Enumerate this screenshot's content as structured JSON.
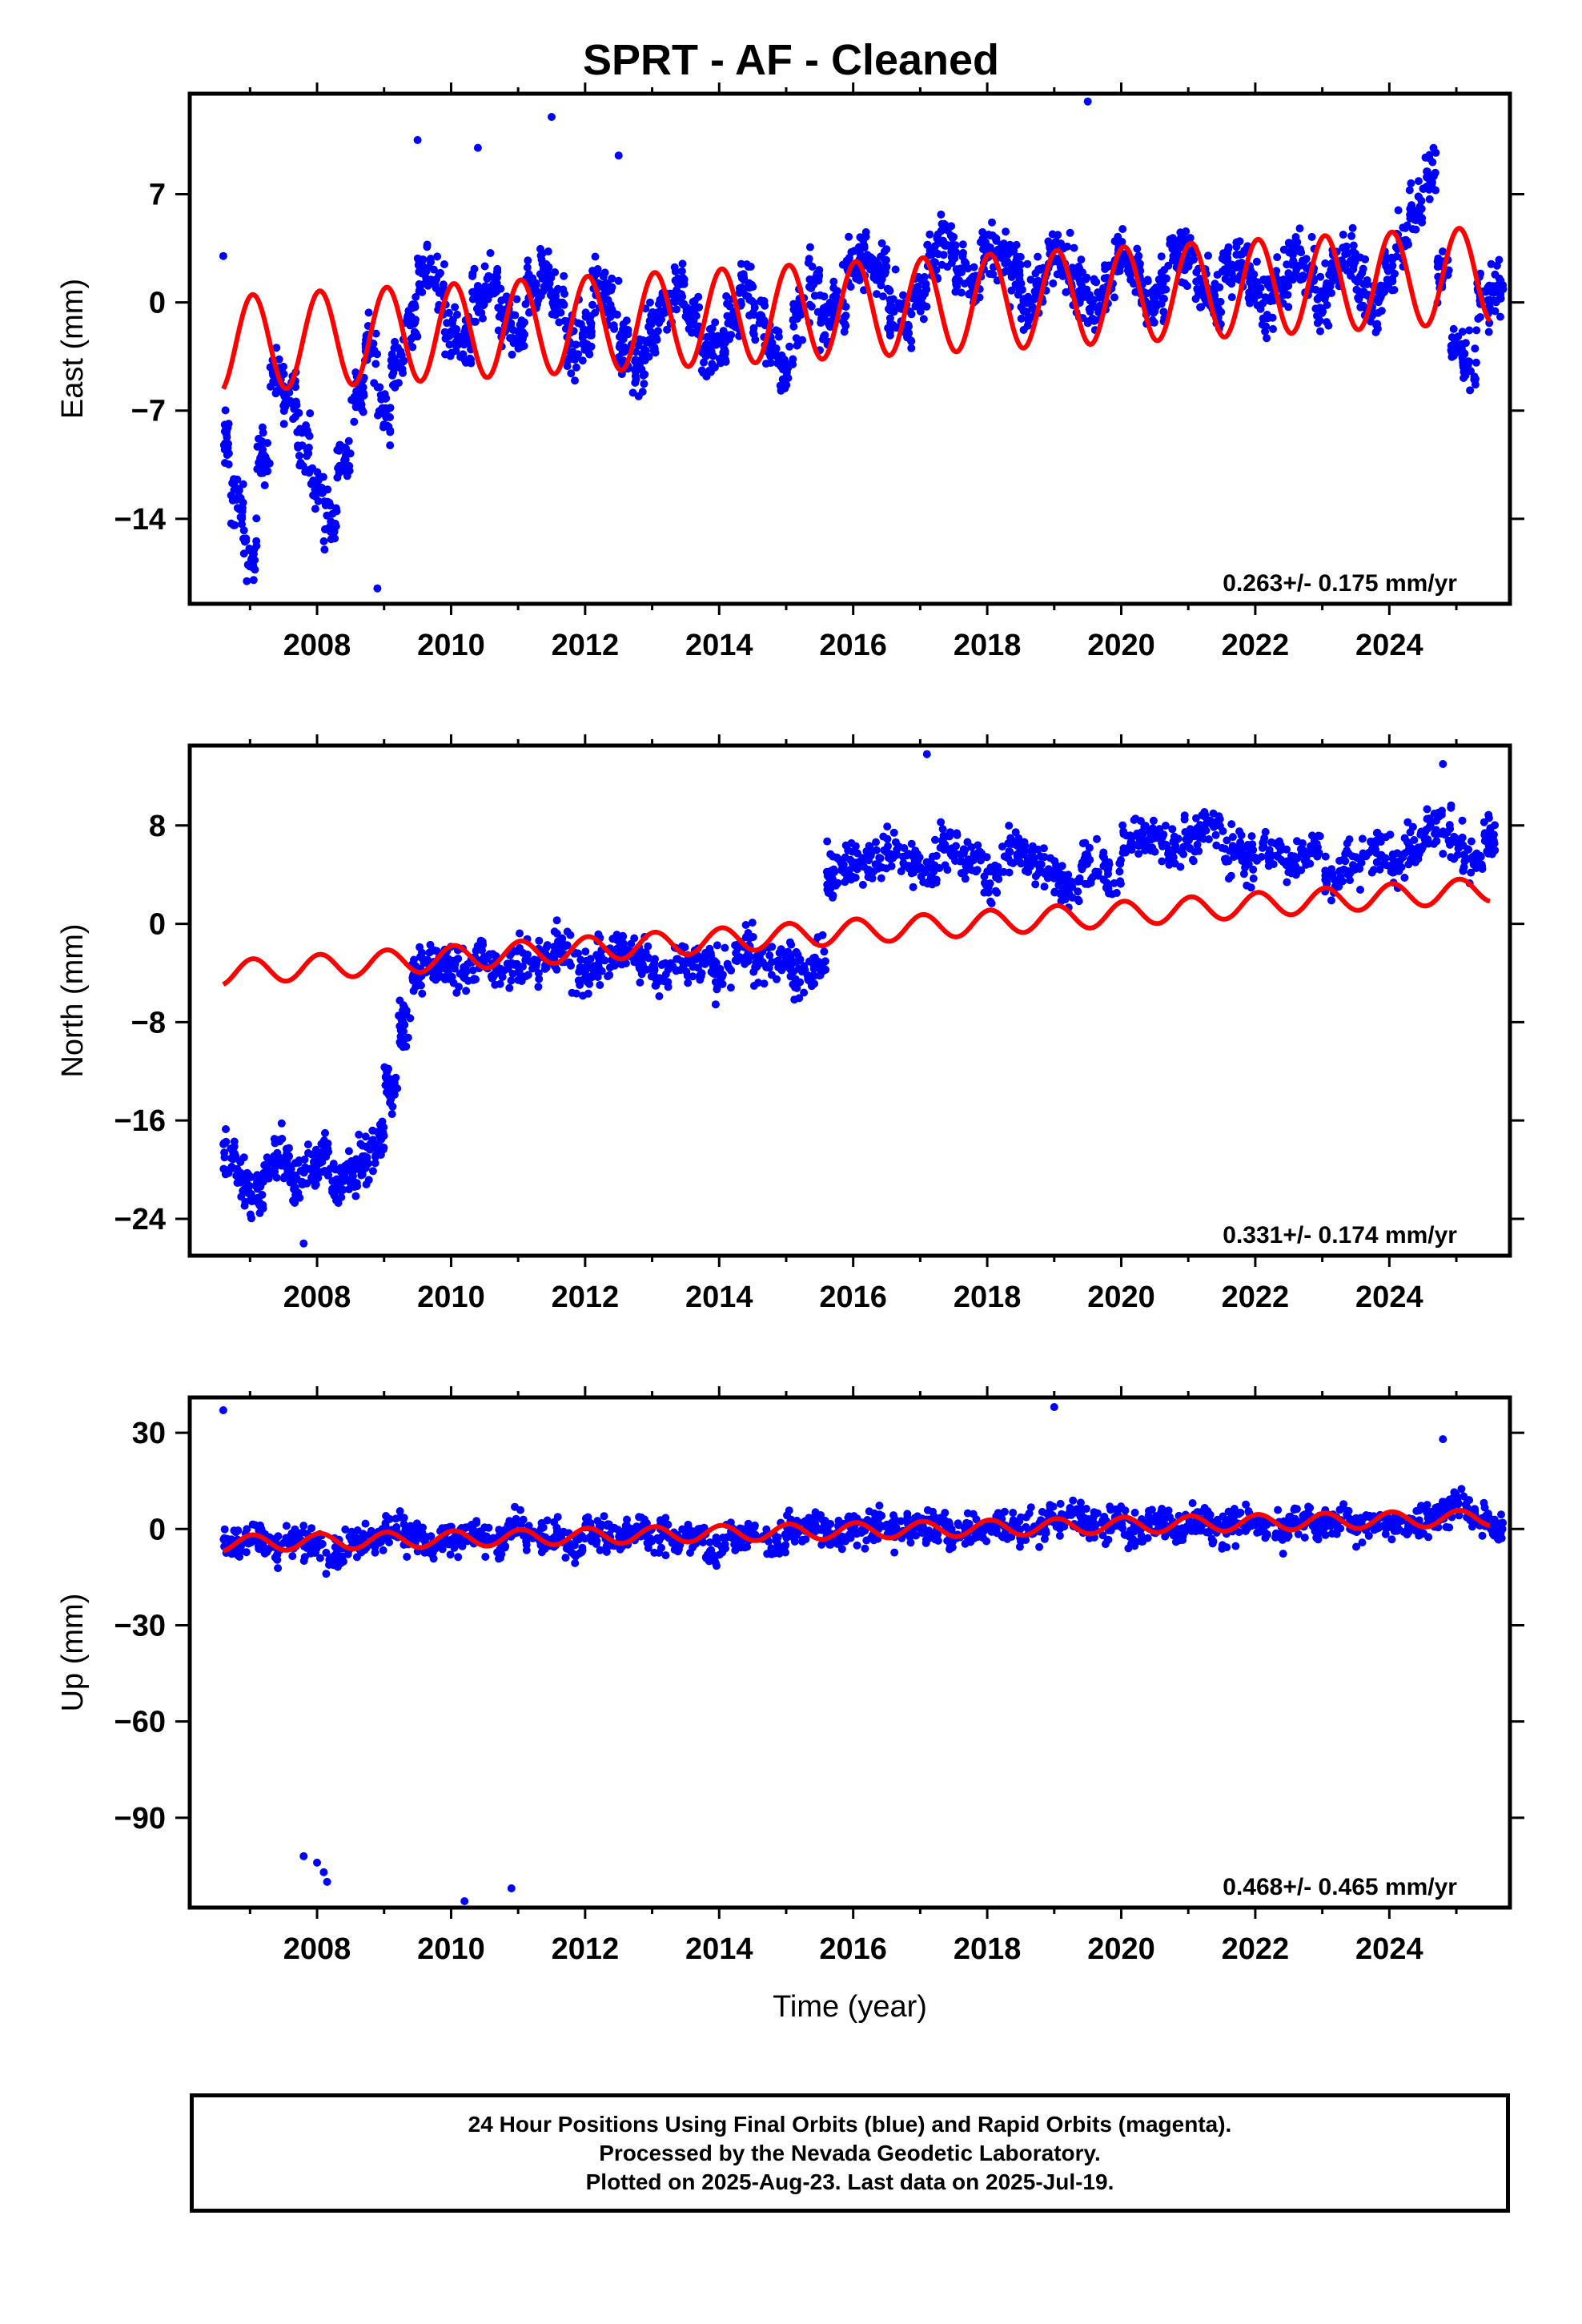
{
  "title": "SPRT  - AF - Cleaned",
  "colors": {
    "data": "#0000ff",
    "model": "#ff0000",
    "frame": "#000000"
  },
  "footer": {
    "line1": "24 Hour Positions Using Final Orbits (blue) and Rapid Orbits (magenta).",
    "line2": "Processed by the Nevada Geodetic Laboratory.",
    "line3": "Plotted on 2025-Aug-23. Last data on 2025-Jul-19."
  },
  "chart_data": [
    {
      "type": "scatter",
      "panel": "east",
      "title": "",
      "xlabel": "",
      "ylabel": "East (mm)",
      "xlim": [
        2006.1,
        2025.8
      ],
      "ylim": [
        -19.5,
        13.5
      ],
      "xticks": [
        2008,
        2010,
        2012,
        2014,
        2016,
        2018,
        2020,
        2022,
        2024
      ],
      "yticks": [
        -14,
        -7,
        0,
        7
      ],
      "grid": false,
      "annotation": "0.263+/- 0.175 mm/yr",
      "series": [
        {
          "name": "",
          "kind": "points",
          "color": "#0000ff",
          "x": [
            2006.6,
            2006.7,
            2006.9,
            2007.1,
            2007.3,
            2007.5,
            2007.7,
            2007.9,
            2008.1,
            2008.3,
            2008.5,
            2008.7,
            2008.9,
            2009.1,
            2009.3,
            2009.5,
            2009.7,
            2009.9,
            2010.1,
            2010.3,
            2010.5,
            2010.7,
            2010.9,
            2011.1,
            2011.3,
            2011.5,
            2011.7,
            2011.9,
            2012.1,
            2012.3,
            2012.5,
            2012.7,
            2012.9,
            2013.1,
            2013.3,
            2013.5,
            2013.7,
            2013.9,
            2014.1,
            2014.3,
            2014.5,
            2014.7,
            2014.9,
            2015.1,
            2015.3,
            2015.5,
            2015.7,
            2015.9,
            2016.1,
            2016.3,
            2016.5,
            2016.7,
            2016.9,
            2017.1,
            2017.3,
            2017.5,
            2017.7,
            2017.9,
            2018.1,
            2018.3,
            2018.5,
            2018.7,
            2018.9,
            2019.1,
            2019.3,
            2019.5,
            2019.7,
            2019.9,
            2020.1,
            2020.3,
            2020.5,
            2020.7,
            2020.9,
            2021.1,
            2021.3,
            2021.5,
            2021.7,
            2021.9,
            2022.1,
            2022.3,
            2022.5,
            2022.7,
            2022.9,
            2023.1,
            2023.3,
            2023.5,
            2023.7,
            2023.9,
            2024.1,
            2024.3,
            2024.5,
            2024.7,
            2024.9,
            2025.1,
            2025.3,
            2025.5
          ],
          "y": [
            -9,
            -13,
            -16,
            -10,
            -5,
            -6,
            -9,
            -12,
            -14,
            -10,
            -6,
            -3,
            -7,
            -4,
            -1,
            2,
            1,
            -2,
            -3,
            0,
            1,
            -1,
            -2,
            1,
            2,
            0,
            -3,
            -2,
            1,
            0,
            -3,
            -4,
            -2,
            0,
            1,
            -1,
            -3,
            -3,
            -1,
            1,
            -1,
            -3,
            -4,
            -1,
            1,
            -1,
            0,
            2,
            3,
            2,
            0,
            -1,
            1,
            3,
            4,
            2,
            1,
            3,
            3,
            2,
            0,
            1,
            3,
            2,
            1,
            0,
            1,
            3,
            2,
            0,
            1,
            3,
            3,
            1,
            0,
            2,
            3,
            1,
            0,
            1,
            3,
            2,
            0,
            2,
            3,
            1,
            0,
            2,
            4,
            6,
            8,
            2,
            -3,
            -4,
            0,
            1
          ]
        },
        {
          "name": "",
          "kind": "outliers",
          "color": "#0000ff",
          "x": [
            2006.6,
            2008.9,
            2009.5,
            2010.4,
            2011.5,
            2012.5,
            2019.5
          ],
          "y": [
            3,
            -18.5,
            10.5,
            10,
            12,
            9.5,
            13
          ]
        },
        {
          "name": "",
          "kind": "model",
          "color": "#ff0000",
          "amplitude": 3.1,
          "x": [
            2006.6,
            2025.5
          ],
          "y": [
            -2.7,
            1.8
          ]
        }
      ]
    },
    {
      "type": "scatter",
      "panel": "north",
      "title": "",
      "xlabel": "",
      "ylabel": "North (mm)",
      "xlim": [
        2006.1,
        2025.8
      ],
      "ylim": [
        -27,
        14.5
      ],
      "xticks": [
        2008,
        2010,
        2012,
        2014,
        2016,
        2018,
        2020,
        2022,
        2024
      ],
      "yticks": [
        -24,
        -16,
        -8,
        0,
        8
      ],
      "grid": false,
      "annotation": "0.331+/- 0.174 mm/yr",
      "series": [
        {
          "name": "",
          "kind": "points",
          "color": "#0000ff",
          "x": [
            2006.6,
            2006.8,
            2007.0,
            2007.2,
            2007.4,
            2007.6,
            2007.8,
            2008.0,
            2008.2,
            2008.4,
            2008.6,
            2008.8,
            2009.0,
            2009.2,
            2009.4,
            2009.6,
            2009.8,
            2010.0,
            2010.3,
            2010.6,
            2010.9,
            2011.2,
            2011.5,
            2011.8,
            2012.1,
            2012.4,
            2012.7,
            2013.0,
            2013.3,
            2013.6,
            2013.9,
            2014.2,
            2014.5,
            2014.8,
            2015.1,
            2015.4,
            2015.6,
            2015.8,
            2016.1,
            2016.4,
            2016.7,
            2017.0,
            2017.3,
            2017.6,
            2017.9,
            2018.2,
            2018.5,
            2018.8,
            2019.1,
            2019.4,
            2019.7,
            2020.0,
            2020.3,
            2020.6,
            2020.9,
            2021.2,
            2021.5,
            2021.8,
            2022.1,
            2022.4,
            2022.7,
            2023.0,
            2023.3,
            2023.6,
            2023.9,
            2024.2,
            2024.5,
            2024.8,
            2025.1,
            2025.4
          ],
          "y": [
            -19,
            -21,
            -22,
            -20,
            -19,
            -21,
            -20,
            -19,
            -21,
            -20,
            -19,
            -18,
            -13,
            -8,
            -4,
            -3,
            -3,
            -4,
            -3,
            -4,
            -3,
            -3,
            -2,
            -4,
            -3,
            -2,
            -3,
            -4,
            -3,
            -3,
            -4,
            -2,
            -3,
            -3,
            -4,
            -3,
            4,
            5,
            5,
            6,
            5,
            4,
            6,
            5,
            4,
            6,
            5,
            4,
            3,
            5,
            4,
            7,
            7,
            6,
            7,
            8,
            6,
            5,
            6,
            5,
            6,
            4,
            5,
            6,
            5,
            6,
            8,
            7,
            5,
            7
          ]
        },
        {
          "name": "",
          "kind": "outliers",
          "color": "#0000ff",
          "x": [
            2007.8,
            2017.1,
            2024.8
          ],
          "y": [
            -26,
            13.8,
            13
          ]
        },
        {
          "name": "",
          "kind": "model",
          "color": "#ff0000",
          "amplitude": 1.0,
          "x": [
            2006.6,
            2025.5
          ],
          "y": [
            -4.0,
            2.8
          ]
        }
      ]
    },
    {
      "type": "scatter",
      "panel": "up",
      "title": "",
      "xlabel": "Time (year)",
      "ylabel": "Up (mm)",
      "xlim": [
        2006.1,
        2025.8
      ],
      "ylim": [
        -118,
        41
      ],
      "xticks": [
        2008,
        2010,
        2012,
        2014,
        2016,
        2018,
        2020,
        2022,
        2024
      ],
      "yticks": [
        -90,
        -60,
        -30,
        0,
        30
      ],
      "grid": false,
      "annotation": "0.468+/- 0.465 mm/yr",
      "series": [
        {
          "name": "",
          "kind": "points",
          "color": "#0000ff",
          "x": [
            2006.6,
            2006.9,
            2007.2,
            2007.5,
            2007.8,
            2008.1,
            2008.4,
            2008.7,
            2009.0,
            2009.3,
            2009.6,
            2009.9,
            2010.2,
            2010.5,
            2010.8,
            2011.1,
            2011.4,
            2011.7,
            2012.0,
            2012.3,
            2012.6,
            2012.9,
            2013.2,
            2013.5,
            2013.8,
            2014.1,
            2014.4,
            2014.7,
            2015.0,
            2015.3,
            2015.6,
            2015.9,
            2016.2,
            2016.5,
            2016.8,
            2017.1,
            2017.4,
            2017.7,
            2018.0,
            2018.3,
            2018.6,
            2018.9,
            2019.2,
            2019.5,
            2019.8,
            2020.1,
            2020.4,
            2020.7,
            2021.0,
            2021.3,
            2021.6,
            2021.9,
            2022.2,
            2022.5,
            2022.8,
            2023.1,
            2023.4,
            2023.7,
            2024.0,
            2024.3,
            2024.6,
            2024.9,
            2025.2,
            2025.5
          ],
          "y": [
            -4,
            -2,
            -6,
            -3,
            -5,
            -8,
            -4,
            -3,
            0,
            -2,
            -5,
            -3,
            -2,
            -4,
            0,
            -3,
            -2,
            -5,
            -1,
            -3,
            0,
            -2,
            -4,
            -1,
            -6,
            -3,
            -2,
            -4,
            0,
            1,
            -2,
            0,
            2,
            -1,
            0,
            1,
            -2,
            0,
            2,
            0,
            1,
            4,
            3,
            1,
            2,
            0,
            2,
            1,
            3,
            0,
            2,
            1,
            -1,
            2,
            1,
            3,
            0,
            2,
            1,
            3,
            5,
            8,
            3,
            0
          ]
        },
        {
          "name": "",
          "kind": "outliers",
          "color": "#0000ff",
          "x": [
            2006.6,
            2007.8,
            2008.0,
            2008.1,
            2008.15,
            2010.2,
            2010.9,
            2019.0,
            2024.8
          ],
          "y": [
            37,
            -102,
            -104,
            -107,
            -110,
            -116,
            -112,
            38,
            28
          ]
        },
        {
          "name": "",
          "kind": "model",
          "color": "#ff0000",
          "amplitude": 2.5,
          "x": [
            2006.6,
            2025.5
          ],
          "y": [
            -4.5,
            3.5
          ]
        }
      ]
    }
  ]
}
